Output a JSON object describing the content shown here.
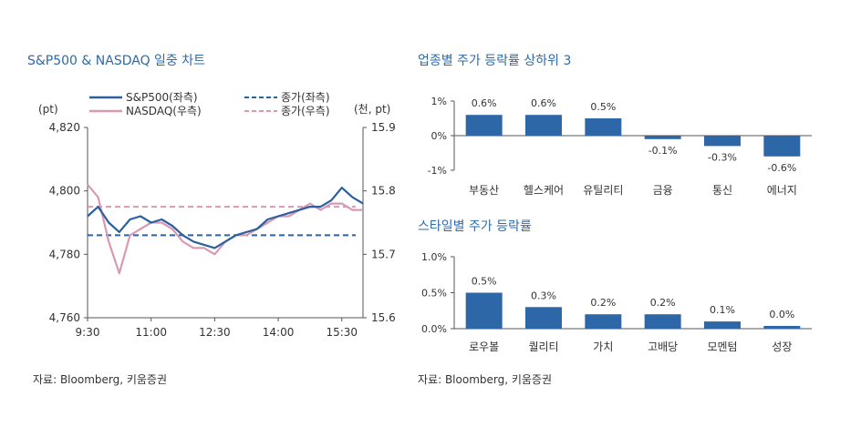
{
  "left_panel": {
    "title": "S&P500 & NASDAQ 일중 차트",
    "source": "자료: Bloomberg, 키움증권"
  },
  "right_top_panel": {
    "title": "업종별 주가 등락률 상하위 3"
  },
  "right_bottom_panel": {
    "title": "스타일별 주가 등락률",
    "source": "자료: Bloomberg, 키움증권"
  },
  "colors": {
    "title": "#2e6aa8",
    "sp500": "#2e5f9e",
    "nasdaq": "#d89ab2",
    "bar": "#2e67a8"
  },
  "chart_data": [
    {
      "type": "line",
      "left_unit": "(pt)",
      "right_unit": "(천, pt)",
      "x_ticks": [
        "9:30",
        "11:00",
        "12:30",
        "14:00",
        "15:30"
      ],
      "y_left": {
        "ticks": [
          "4,820",
          "4,800",
          "4,780",
          "4,760"
        ],
        "range": [
          4760,
          4820
        ]
      },
      "y_right": {
        "ticks": [
          "15.9",
          "15.8",
          "15.7",
          "15.6"
        ],
        "range": [
          15.6,
          15.9
        ]
      },
      "grid": false,
      "legend": [
        {
          "label": "S&P500(좌측)",
          "style": "solid",
          "color": "#2e5f9e"
        },
        {
          "label": "NASDAQ(우측)",
          "style": "solid",
          "color": "#d89ab2"
        },
        {
          "label": "종가(좌측)",
          "style": "dashed",
          "color": "#2e5f9e"
        },
        {
          "label": "종가(우측)",
          "style": "dashed",
          "color": "#d89ab2"
        }
      ],
      "series": [
        {
          "name": "S&P500(좌측)",
          "axis": "left",
          "x": [
            "9:30",
            "9:45",
            "10:00",
            "10:15",
            "10:30",
            "10:45",
            "11:00",
            "11:15",
            "11:30",
            "11:45",
            "12:00",
            "12:15",
            "12:30",
            "12:45",
            "13:00",
            "13:15",
            "13:30",
            "13:45",
            "14:00",
            "14:15",
            "14:30",
            "14:45",
            "15:00",
            "15:15",
            "15:30",
            "15:45",
            "16:00"
          ],
          "values": [
            4792,
            4795,
            4790,
            4787,
            4791,
            4792,
            4790,
            4791,
            4789,
            4786,
            4784,
            4783,
            4782,
            4784,
            4786,
            4787,
            4788,
            4791,
            4792,
            4793,
            4794,
            4795,
            4795,
            4797,
            4801,
            4798,
            4796
          ]
        },
        {
          "name": "NASDAQ(우측)",
          "axis": "right",
          "x": [
            "9:30",
            "9:45",
            "10:00",
            "10:15",
            "10:30",
            "10:45",
            "11:00",
            "11:15",
            "11:30",
            "11:45",
            "12:00",
            "12:15",
            "12:30",
            "12:45",
            "13:00",
            "13:15",
            "13:30",
            "13:45",
            "14:00",
            "14:15",
            "14:30",
            "14:45",
            "15:00",
            "15:15",
            "15:30",
            "15:45",
            "16:00"
          ],
          "values": [
            15.81,
            15.79,
            15.72,
            15.67,
            15.73,
            15.74,
            15.75,
            15.75,
            15.74,
            15.72,
            15.71,
            15.71,
            15.7,
            15.72,
            15.73,
            15.73,
            15.74,
            15.75,
            15.76,
            15.76,
            15.77,
            15.78,
            15.77,
            15.78,
            15.78,
            15.77,
            15.77
          ]
        }
      ],
      "reference_lines": [
        {
          "name": "종가(좌측)",
          "axis": "left",
          "value": 4786
        },
        {
          "name": "종가(우측)",
          "axis": "right",
          "value": 15.775
        }
      ]
    },
    {
      "type": "bar",
      "categories": [
        "부동산",
        "헬스케어",
        "유틸리티",
        "금융",
        "통신",
        "에너지"
      ],
      "values": [
        0.6,
        0.6,
        0.5,
        -0.1,
        -0.3,
        -0.6
      ],
      "data_labels": [
        "0.6%",
        "0.6%",
        "0.5%",
        "-0.1%",
        "-0.3%",
        "-0.6%"
      ],
      "y_ticks": [
        "1%",
        "0%",
        "-1%"
      ],
      "ylim": [
        -1,
        1
      ]
    },
    {
      "type": "bar",
      "categories": [
        "로우볼",
        "퀄리티",
        "가치",
        "고배당",
        "모멘텀",
        "성장"
      ],
      "values": [
        0.5,
        0.3,
        0.2,
        0.2,
        0.1,
        0.0
      ],
      "data_labels": [
        "0.5%",
        "0.3%",
        "0.2%",
        "0.2%",
        "0.1%",
        "0.0%"
      ],
      "y_ticks": [
        "1.0%",
        "0.5%",
        "0.0%"
      ],
      "ylim": [
        0,
        1
      ]
    }
  ]
}
